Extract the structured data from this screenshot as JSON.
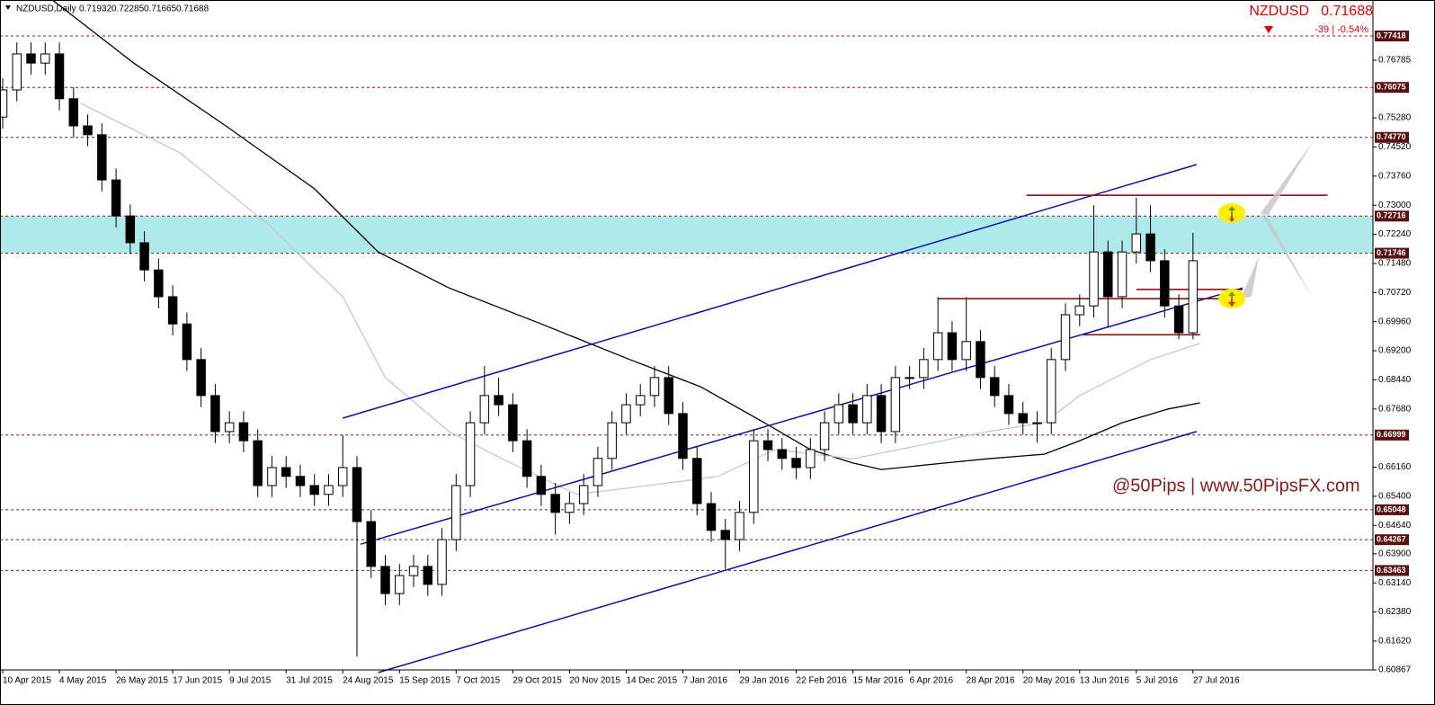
{
  "chart_data": {
    "type": "candlestick",
    "header": {
      "symbol": "NZDUSD,Daily",
      "open": 0.71932,
      "high": 0.72285,
      "low": 0.71665,
      "close": 0.71688
    },
    "quote": {
      "symbol": "NZDUSD",
      "price": 0.71688,
      "change": "-39 | -0.54%"
    },
    "watermark": "@50Pips | www.50PipsFX.com",
    "xlim": [
      -0.76,
      386.8
    ],
    "xticks": [
      {
        "value": 0,
        "label": "10 Apr 2015"
      },
      {
        "value": 16,
        "label": "4 May 2015"
      },
      {
        "value": 32,
        "label": "26 May 2015"
      },
      {
        "value": 48,
        "label": "17 Jun 2015"
      },
      {
        "value": 64,
        "label": "9 Jul 2015"
      },
      {
        "value": 80,
        "label": "31 Jul 2015"
      },
      {
        "value": 96,
        "label": "24 Aug 2015"
      },
      {
        "value": 112,
        "label": "15 Sep 2015"
      },
      {
        "value": 128,
        "label": "7 Oct 2015"
      },
      {
        "value": 144,
        "label": "29 Oct 2015"
      },
      {
        "value": 160,
        "label": "20 Nov 2015"
      },
      {
        "value": 176,
        "label": "14 Dec 2015"
      },
      {
        "value": 192,
        "label": "7 Jan 2016"
      },
      {
        "value": 208,
        "label": "29 Jan 2016"
      },
      {
        "value": 224,
        "label": "22 Feb 2016"
      },
      {
        "value": 240,
        "label": "15 Mar 2016"
      },
      {
        "value": 256,
        "label": "6 Apr 2016"
      },
      {
        "value": 272,
        "label": "28 Apr 2016"
      },
      {
        "value": 288,
        "label": "20 May 2016"
      },
      {
        "value": 304,
        "label": "13 Jun 2016"
      },
      {
        "value": 320,
        "label": "5 Jul 2016"
      },
      {
        "value": 336,
        "label": "27 Jul 2016"
      }
    ],
    "ylim": [
      0.60867,
      0.78357
    ],
    "yticks": [
      0.76785,
      {
        "value": 0.7528,
        "label": "0.75280"
      },
      {
        "value": 0.7452,
        "label": "0.74520"
      },
      {
        "value": 0.7376,
        "label": "0.73760"
      },
      {
        "value": 0.73,
        "label": "0.73000"
      },
      {
        "value": 0.7224,
        "label": "0.72240"
      },
      {
        "value": 0.7148,
        "label": "0.71480"
      },
      {
        "value": 0.7072,
        "label": "0.70720"
      },
      {
        "value": 0.6996,
        "label": "0.69960"
      },
      {
        "value": 0.692,
        "label": "0.69200"
      },
      {
        "value": 0.6844,
        "label": "0.68440"
      },
      {
        "value": 0.6768,
        "label": "0.67680"
      },
      {
        "value": 0.6616,
        "label": "0.66160"
      },
      {
        "value": 0.654,
        "label": "0.65400"
      },
      {
        "value": 0.6464,
        "label": "0.64640"
      },
      {
        "value": 0.639,
        "label": "0.63900"
      },
      {
        "value": 0.6314,
        "label": "0.63140"
      },
      {
        "value": 0.6238,
        "label": "0.62380"
      },
      {
        "value": 0.6162,
        "label": "0.61620"
      },
      0.60867
    ],
    "levels": [
      0.77418,
      0.76075,
      {
        "value": 0.7477,
        "label": "0.74770"
      },
      0.72716,
      0.71746,
      0.66999,
      0.65048,
      0.64267,
      0.63463
    ],
    "level_color": "#8b1a1a",
    "zone": [
      0.71746,
      0.72716
    ],
    "zone_color": "#aeeaea",
    "up_color": "#ffffff",
    "down_color": "#000000",
    "x": [
      0,
      4,
      8,
      12,
      16,
      20,
      24,
      28,
      32,
      36,
      40,
      44,
      48,
      52,
      56,
      60,
      64,
      68,
      72,
      76,
      80,
      84,
      88,
      92,
      96,
      100,
      104,
      108,
      112,
      116,
      120,
      124,
      128,
      132,
      136,
      140,
      144,
      148,
      152,
      156,
      160,
      164,
      168,
      172,
      176,
      180,
      184,
      188,
      192,
      196,
      200,
      204,
      208,
      212,
      216,
      220,
      224,
      228,
      232,
      236,
      240,
      244,
      248,
      252,
      256,
      260,
      264,
      268,
      272,
      276,
      280,
      284,
      288,
      292,
      296,
      300,
      304,
      308,
      312,
      316,
      320,
      324,
      328,
      332,
      336
    ],
    "open": [
      0.753,
      0.7601,
      0.7695,
      0.7671,
      0.7695,
      0.7578,
      0.7507,
      0.7484,
      0.7366,
      0.7272,
      0.7202,
      0.7131,
      0.7061,
      0.699,
      0.6897,
      0.6803,
      0.6709,
      0.6732,
      0.6685,
      0.6568,
      0.6615,
      0.6592,
      0.6568,
      0.6545,
      0.6568,
      0.6615,
      0.6474,
      0.6357,
      0.6286,
      0.6333,
      0.6357,
      0.631,
      0.6427,
      0.6568,
      0.6732,
      0.6803,
      0.6779,
      0.6685,
      0.6592,
      0.6545,
      0.6498,
      0.6521,
      0.6568,
      0.6639,
      0.6732,
      0.6779,
      0.6803,
      0.685,
      0.6756,
      0.6639,
      0.6521,
      0.6451,
      0.6427,
      0.6498,
      0.6685,
      0.6662,
      0.6639,
      0.6615,
      0.6662,
      0.6732,
      0.6779,
      0.6732,
      0.6803,
      0.6709,
      0.685,
      0.685,
      0.6897,
      0.6967,
      0.6897,
      0.6944,
      0.685,
      0.6803,
      0.6756,
      0.6732,
      0.6732,
      0.6897,
      0.7014,
      0.7037,
      0.7178,
      0.7061,
      0.7178,
      0.7225,
      0.7155,
      0.7037,
      0.6967
    ],
    "high": [
      0.7631,
      0.7725,
      0.7725,
      0.7725,
      0.7725,
      0.7608,
      0.7537,
      0.7514,
      0.7396,
      0.7302,
      0.7232,
      0.7161,
      0.7091,
      0.702,
      0.6927,
      0.6833,
      0.6762,
      0.6762,
      0.6715,
      0.6645,
      0.6645,
      0.6622,
      0.6598,
      0.6598,
      0.67,
      0.6645,
      0.6504,
      0.6387,
      0.6363,
      0.6387,
      0.6387,
      0.6457,
      0.6598,
      0.6762,
      0.688,
      0.685,
      0.6809,
      0.6715,
      0.6622,
      0.6575,
      0.6551,
      0.6598,
      0.6669,
      0.6762,
      0.6809,
      0.6833,
      0.688,
      0.688,
      0.6786,
      0.6669,
      0.6551,
      0.6481,
      0.6528,
      0.6715,
      0.6715,
      0.6692,
      0.6669,
      0.6692,
      0.6762,
      0.6809,
      0.6809,
      0.6833,
      0.6833,
      0.688,
      0.688,
      0.6927,
      0.706,
      0.6997,
      0.706,
      0.6974,
      0.688,
      0.6833,
      0.6786,
      0.6762,
      0.6927,
      0.7044,
      0.7067,
      0.73,
      0.7208,
      0.7208,
      0.732,
      0.73,
      0.7185,
      0.7067,
      0.7228
    ],
    "low": [
      0.75,
      0.7571,
      0.7641,
      0.7641,
      0.7548,
      0.7477,
      0.7454,
      0.7336,
      0.7242,
      0.7172,
      0.7101,
      0.7031,
      0.696,
      0.6867,
      0.6773,
      0.6679,
      0.6679,
      0.6655,
      0.6538,
      0.6538,
      0.6562,
      0.6538,
      0.6515,
      0.6515,
      0.6538,
      0.6122,
      0.6327,
      0.6256,
      0.6256,
      0.6303,
      0.628,
      0.628,
      0.6397,
      0.6538,
      0.6702,
      0.6749,
      0.6655,
      0.6562,
      0.6515,
      0.644,
      0.6468,
      0.6491,
      0.6538,
      0.6609,
      0.6702,
      0.6749,
      0.6773,
      0.6726,
      0.6609,
      0.6491,
      0.6421,
      0.635,
      0.6397,
      0.6468,
      0.6632,
      0.6609,
      0.6585,
      0.6585,
      0.6632,
      0.6702,
      0.6702,
      0.6702,
      0.6679,
      0.6679,
      0.682,
      0.682,
      0.6867,
      0.6867,
      0.6867,
      0.682,
      0.6773,
      0.6726,
      0.6702,
      0.668,
      0.6702,
      0.6867,
      0.6984,
      0.7007,
      0.698,
      0.7031,
      0.7148,
      0.7125,
      0.7007,
      0.695,
      0.695
    ],
    "close": [
      0.7601,
      0.7695,
      0.7671,
      0.7695,
      0.7578,
      0.7507,
      0.7484,
      0.7366,
      0.7272,
      0.7202,
      0.7131,
      0.7061,
      0.699,
      0.6897,
      0.6803,
      0.6709,
      0.6732,
      0.6685,
      0.6568,
      0.6615,
      0.6592,
      0.6568,
      0.6545,
      0.6568,
      0.6615,
      0.6474,
      0.6357,
      0.6286,
      0.6333,
      0.6357,
      0.631,
      0.6427,
      0.6568,
      0.6732,
      0.6803,
      0.6779,
      0.6685,
      0.6592,
      0.6545,
      0.6498,
      0.6521,
      0.6568,
      0.6639,
      0.6732,
      0.6779,
      0.6803,
      0.685,
      0.6756,
      0.6639,
      0.6521,
      0.6451,
      0.6427,
      0.6498,
      0.6685,
      0.6662,
      0.6639,
      0.6615,
      0.6662,
      0.6732,
      0.6779,
      0.6732,
      0.6803,
      0.6709,
      0.685,
      0.685,
      0.6897,
      0.6967,
      0.6897,
      0.6944,
      0.685,
      0.6803,
      0.6756,
      0.6732,
      0.6732,
      0.6897,
      0.7014,
      0.7037,
      0.7178,
      0.7061,
      0.7178,
      0.7225,
      0.7155,
      0.7037,
      0.6967,
      0.7155
    ],
    "series": [
      {
        "color": "#000000",
        "x": [
          14,
          37,
          63,
          88,
          106,
          126,
          152,
          177,
          197,
          215,
          228,
          240,
          248,
          266,
          278,
          294,
          304,
          316,
          329,
          338
        ],
        "values": [
          0.7836,
          0.7671,
          0.7507,
          0.7343,
          0.7178,
          0.7084,
          0.699,
          0.6897,
          0.6826,
          0.6732,
          0.6662,
          0.6627,
          0.661,
          0.6627,
          0.6638,
          0.665,
          0.6685,
          0.6732,
          0.6768,
          0.6784
        ]
      },
      {
        "color": "#c8c8c8",
        "x": [
          22,
          50,
          75,
          96,
          108,
          126,
          141,
          162,
          182,
          202,
          218,
          240,
          253,
          278,
          294,
          304,
          324,
          338
        ],
        "values": [
          0.7566,
          0.7437,
          0.7249,
          0.7061,
          0.685,
          0.6709,
          0.6638,
          0.6545,
          0.6568,
          0.6592,
          0.6662,
          0.6638,
          0.6662,
          0.6709,
          0.6732,
          0.6803,
          0.6897,
          0.6939
        ]
      }
    ],
    "trendlines": [
      {
        "color": "#1010a0",
        "x": [
          96,
          337
        ],
        "values": [
          0.6744,
          0.7406
        ]
      },
      {
        "color": "#1010a0",
        "x": [
          101,
          350
        ],
        "values": [
          0.6415,
          0.7084
        ]
      },
      {
        "color": "#1010a0",
        "x": [
          106,
          337
        ],
        "values": [
          0.608,
          0.6709
        ]
      },
      {
        "color": "#800000",
        "x": [
          289,
          374
        ],
        "values": [
          0.7326,
          0.7326
        ]
      },
      {
        "color": "#800000",
        "x": [
          264,
          350
        ],
        "values": [
          0.7056,
          0.7056
        ]
      },
      {
        "color": "#800000",
        "x": [
          320,
          350
        ],
        "values": [
          0.708,
          0.708
        ]
      },
      {
        "color": "#800000",
        "x": [
          305,
          338
        ],
        "values": [
          0.6962,
          0.6962
        ]
      }
    ]
  }
}
